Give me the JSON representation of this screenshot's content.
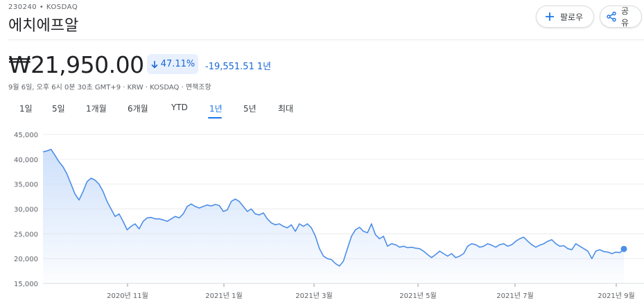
{
  "header": {
    "ticker": "230240 • KOSDAQ",
    "company": "에치에프알",
    "follow_label": "팔로우",
    "share_label": "공유"
  },
  "quote": {
    "price": "₩21,950.00",
    "change_pct": "47.11%",
    "change_abs": "-19,551.51",
    "change_period": "1년",
    "meta": "9월 6일, 오후 6시 0분 30초 GMT+9 · KRW · KOSDAQ · 면책조항"
  },
  "tabs": [
    {
      "label": "1일"
    },
    {
      "label": "5일"
    },
    {
      "label": "1개월"
    },
    {
      "label": "6개월"
    },
    {
      "label": "YTD"
    },
    {
      "label": "1년"
    },
    {
      "label": "5년"
    },
    {
      "label": "최대"
    }
  ],
  "active_tab": "1년",
  "colors": {
    "accent": "#1a73e8",
    "line": "#4d8ee8",
    "fill_top": "#c9ddfa",
    "negative": "#1967d2"
  },
  "icons": {
    "follow": "plus-icon",
    "share": "share-icon",
    "change": "arrow-down-icon"
  },
  "chart_data": {
    "type": "area",
    "ylim": [
      15000,
      45000
    ],
    "y_ticks": [
      "45,000",
      "40,000",
      "35,000",
      "30,000",
      "25,000",
      "20,000",
      "15,000"
    ],
    "x_ticks": [
      "2020년 11월",
      "2021년 1월",
      "2021년 3월",
      "2021년 5월",
      "2021년 7월",
      "2021년 9월"
    ],
    "grid": true,
    "series": [
      {
        "values": [
          41500,
          41700,
          42000,
          40800,
          39500,
          38500,
          37000,
          35000,
          33000,
          31800,
          33500,
          35500,
          36200,
          35800,
          35000,
          33500,
          31500,
          30000,
          28500,
          29000,
          27500,
          25800,
          26500,
          27000,
          26000,
          27500,
          28200,
          28300,
          28000,
          28000,
          27800,
          27500,
          28000,
          28500,
          28200,
          29000,
          30500,
          31000,
          30500,
          30200,
          30500,
          30800,
          30600,
          30900,
          30700,
          29500,
          29800,
          31500,
          32000,
          31500,
          30500,
          29500,
          30000,
          29000,
          28800,
          29200,
          28000,
          27200,
          26800,
          27000,
          26500,
          26200,
          26800,
          25500,
          27000,
          26500,
          27000,
          26200,
          24500,
          22000,
          20500,
          20000,
          19800,
          19000,
          18500,
          19500,
          22000,
          24500,
          25800,
          26300,
          25500,
          25200,
          27000,
          24800,
          24000,
          24500,
          22500,
          23000,
          22800,
          22300,
          22500,
          22200,
          22300,
          22100,
          22000,
          21500,
          20800,
          20200,
          20800,
          21500,
          21000,
          20500,
          21000,
          20200,
          20500,
          21000,
          22500,
          23000,
          22800,
          22300,
          22500,
          23000,
          22700,
          22300,
          22800,
          23000,
          22500,
          22800,
          23500,
          24000,
          24300,
          23500,
          22800,
          22300,
          22700,
          23000,
          23500,
          23800,
          23000,
          22500,
          22600,
          22000,
          21800,
          23000,
          22500,
          22000,
          21500,
          20000,
          21500,
          21800,
          21400,
          21300,
          21000,
          21300,
          21200,
          21950
        ]
      }
    ]
  }
}
